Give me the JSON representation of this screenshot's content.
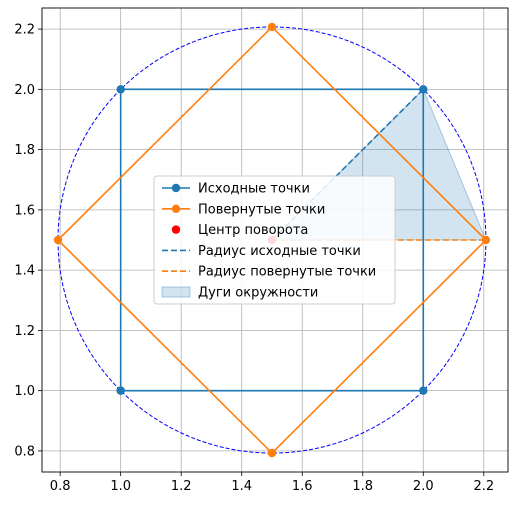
{
  "chart_data": {
    "type": "line",
    "xlim": [
      0.74,
      2.28
    ],
    "ylim": [
      0.73,
      2.27
    ],
    "xticks": [
      "0.8",
      "1.0",
      "1.2",
      "1.4",
      "1.6",
      "1.8",
      "2.0",
      "2.2"
    ],
    "yticks": [
      "0.8",
      "1.0",
      "1.2",
      "1.4",
      "1.6",
      "1.8",
      "2.0",
      "2.2"
    ],
    "grid": true,
    "legend_position": "center",
    "circle": {
      "center": [
        1.5,
        1.5
      ],
      "radius": 0.7071,
      "color": "#0000ff",
      "style": "dashed"
    },
    "series": [
      {
        "name": "Исходные точки",
        "kind": "line-markers",
        "color": "#1f77b4",
        "points": [
          [
            1.0,
            1.0
          ],
          [
            2.0,
            1.0
          ],
          [
            2.0,
            2.0
          ],
          [
            1.0,
            2.0
          ],
          [
            1.0,
            1.0
          ]
        ]
      },
      {
        "name": "Повернутые точки",
        "kind": "line-markers",
        "color": "#ff7f0e",
        "points": [
          [
            1.5,
            0.7929
          ],
          [
            2.2071,
            1.5
          ],
          [
            1.5,
            2.2071
          ],
          [
            0.7929,
            1.5
          ],
          [
            1.5,
            0.7929
          ]
        ]
      },
      {
        "name": "Центр поворота",
        "kind": "scatter",
        "color": "#ff0000",
        "points": [
          [
            1.5,
            1.5
          ]
        ]
      },
      {
        "name": "Радиус исходные точки",
        "kind": "dashed",
        "color": "#1f77b4",
        "points": [
          [
            1.5,
            1.5
          ],
          [
            2.0,
            2.0
          ]
        ]
      },
      {
        "name": "Радиус повернутые точки",
        "kind": "dashed",
        "color": "#ff7f0e",
        "points": [
          [
            1.5,
            1.5
          ],
          [
            2.2071,
            1.5
          ]
        ]
      },
      {
        "name": "Дуги окружности",
        "kind": "fill",
        "color": "#1f77b4",
        "points": [
          [
            1.5,
            1.5
          ],
          [
            2.0,
            2.0
          ],
          [
            2.2071,
            1.5
          ]
        ]
      }
    ]
  }
}
